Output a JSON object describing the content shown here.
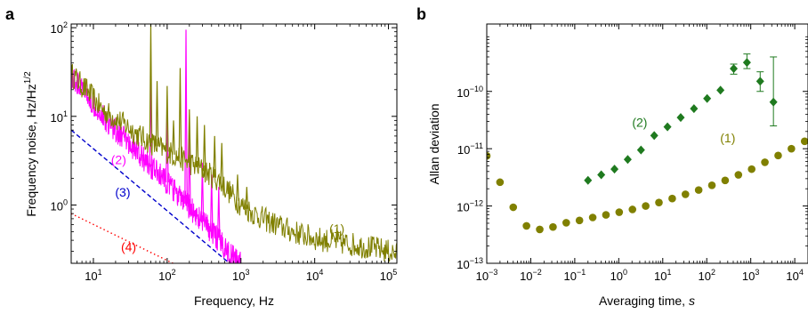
{
  "colors": {
    "olive": "#808000",
    "magenta": "#ff00ff",
    "blue": "#0000cc",
    "red": "#ff0000",
    "green": "#1f7a1f"
  },
  "chart_data": [
    {
      "panel": "a",
      "type": "line",
      "title": "",
      "xlabel": "Frequency, Hz",
      "ylabel": "Frequency noise, Hz/Hz",
      "ylabel_sup": "1/2",
      "xscale": "log",
      "yscale": "log",
      "xlim": [
        5,
        130000
      ],
      "ylim": [
        0.22,
        110
      ],
      "xticks": [
        {
          "v": 10,
          "b": "10",
          "e": "1"
        },
        {
          "v": 100,
          "b": "10",
          "e": "2"
        },
        {
          "v": 1000,
          "b": "10",
          "e": "3"
        },
        {
          "v": 10000,
          "b": "10",
          "e": "4"
        },
        {
          "v": 100000,
          "b": "10",
          "e": "5"
        }
      ],
      "yticks": [
        {
          "v": 1,
          "b": "10",
          "e": "0"
        },
        {
          "v": 10,
          "b": "10",
          "e": "1"
        },
        {
          "v": 100,
          "b": "10",
          "e": "2"
        }
      ],
      "grid": false,
      "series": [
        {
          "label": "(1)",
          "label_at": [
            20000,
            0.48
          ],
          "color": "#808000",
          "style": "noisy",
          "x": [
            5,
            6,
            7,
            8,
            10,
            12,
            15,
            20,
            30,
            40,
            60,
            100,
            150,
            200,
            300,
            500,
            700,
            1000,
            1500,
            2000,
            3000,
            5000,
            10000,
            20000,
            40000,
            70000,
            100000,
            130000
          ],
          "y": [
            30,
            26,
            22,
            20,
            16,
            13,
            11,
            9.5,
            7.5,
            6.2,
            5,
            4,
            3.4,
            3,
            2.5,
            1.9,
            1.4,
            1.0,
            0.8,
            0.7,
            0.6,
            0.5,
            0.42,
            0.38,
            0.35,
            0.32,
            0.3,
            0.28
          ],
          "peaks": [
            {
              "x": 60,
              "y": 110
            },
            {
              "x": 73,
              "y": 25
            },
            {
              "x": 100,
              "y": 22
            },
            {
              "x": 122,
              "y": 9
            },
            {
              "x": 150,
              "y": 35
            },
            {
              "x": 200,
              "y": 12
            },
            {
              "x": 255,
              "y": 10
            },
            {
              "x": 320,
              "y": 8
            },
            {
              "x": 440,
              "y": 6
            },
            {
              "x": 550,
              "y": 5
            },
            {
              "x": 900,
              "y": 2.2
            },
            {
              "x": 1200,
              "y": 1.6
            },
            {
              "x": 20000,
              "y": 0.55
            }
          ]
        },
        {
          "label": "(2)",
          "label_at": [
            22,
            2.9
          ],
          "color": "#ff00ff",
          "style": "noisy",
          "x": [
            5,
            7,
            10,
            15,
            20,
            30,
            50,
            70,
            100,
            150,
            200,
            300,
            400,
            500,
            600,
            700,
            800,
            900,
            1000
          ],
          "y": [
            28,
            20,
            14,
            9,
            7,
            5,
            3.2,
            2.4,
            1.8,
            1.2,
            0.95,
            0.65,
            0.5,
            0.4,
            0.34,
            0.28,
            0.25,
            0.23,
            0.22
          ],
          "peaks": [
            {
              "x": 60,
              "y": 28
            },
            {
              "x": 100,
              "y": 12
            },
            {
              "x": 180,
              "y": 95
            },
            {
              "x": 200,
              "y": 6
            },
            {
              "x": 300,
              "y": 3
            },
            {
              "x": 400,
              "y": 2.2
            },
            {
              "x": 500,
              "y": 1.6
            }
          ]
        },
        {
          "label": "(3)",
          "label_at": [
            25,
            1.25
          ],
          "color": "#0000cc",
          "style": "dashed",
          "x": [
            5,
            700
          ],
          "y": [
            7,
            0.22
          ]
        },
        {
          "label": "(4)",
          "label_at": [
            30,
            0.3
          ],
          "color": "#ff0000",
          "style": "dotted",
          "x": [
            5,
            120
          ],
          "y": [
            0.8,
            0.22
          ]
        }
      ]
    },
    {
      "panel": "b",
      "type": "scatter",
      "title": "",
      "xlabel": "Averaging time, ",
      "xlabel_var": "s",
      "ylabel": "Allan deviation",
      "xscale": "log",
      "yscale": "log",
      "xlim": [
        0.001,
        20000
      ],
      "ylim": [
        1e-13,
        1.5e-09
      ],
      "xticks": [
        {
          "v": 0.001,
          "b": "10",
          "e": "−3"
        },
        {
          "v": 0.01,
          "b": "10",
          "e": "−2"
        },
        {
          "v": 0.1,
          "b": "10",
          "e": "−1"
        },
        {
          "v": 1,
          "b": "10",
          "e": "0"
        },
        {
          "v": 10,
          "b": "10",
          "e": "1"
        },
        {
          "v": 100,
          "b": "10",
          "e": "2"
        },
        {
          "v": 1000,
          "b": "10",
          "e": "3"
        },
        {
          "v": 10000,
          "b": "10",
          "e": "4"
        }
      ],
      "yticks": [
        {
          "v": 1e-13,
          "b": "10",
          "e": "−13"
        },
        {
          "v": 1e-12,
          "b": "10",
          "e": "−12"
        },
        {
          "v": 1e-11,
          "b": "10",
          "e": "−11"
        },
        {
          "v": 1e-10,
          "b": "10",
          "e": "−10"
        }
      ],
      "grid": false,
      "series": [
        {
          "label": "(1)",
          "label_at": [
            300,
            1.3e-11
          ],
          "color": "#808000",
          "marker": "circle",
          "x": [
            0.001,
            0.002,
            0.004,
            0.008,
            0.016,
            0.032,
            0.064,
            0.128,
            0.256,
            0.512,
            1.024,
            2.048,
            4.096,
            8.192,
            16.4,
            32.8,
            65.5,
            131,
            262,
            524,
            1049,
            2097,
            4194,
            8389,
            16777
          ],
          "y": [
            7.5e-12,
            2.6e-12,
            9.5e-13,
            4.5e-13,
            3.9e-13,
            4.3e-13,
            5.1e-13,
            5.6e-13,
            6.3e-13,
            7e-13,
            7.8e-13,
            8.7e-13,
            1e-12,
            1.15e-12,
            1.35e-12,
            1.6e-12,
            1.9e-12,
            2.3e-12,
            2.8e-12,
            3.5e-12,
            4.4e-12,
            5.8e-12,
            7.6e-12,
            1e-11,
            1.35e-11
          ]
        },
        {
          "label": "(2)",
          "label_at": [
            3,
            2.4e-11
          ],
          "color": "#1f7a1f",
          "marker": "diamond",
          "x": [
            0.2,
            0.4,
            0.8,
            1.6,
            3.2,
            6.4,
            12.8,
            25.6,
            51.2,
            102,
            205,
            410,
            819,
            1638,
            3277
          ],
          "y": [
            2.8e-12,
            3.5e-12,
            4.4e-12,
            6.5e-12,
            9.5e-12,
            1.7e-11,
            2.4e-11,
            3.5e-11,
            5e-11,
            7.5e-11,
            1.05e-10,
            2.5e-10,
            3.2e-10,
            1.5e-10,
            6.5e-11
          ],
          "y_err_low": [
            null,
            null,
            null,
            null,
            null,
            null,
            null,
            null,
            null,
            null,
            null,
            2e-10,
            2.5e-10,
            1e-10,
            2.5e-11
          ],
          "y_err_high": [
            null,
            null,
            null,
            null,
            null,
            null,
            null,
            null,
            null,
            null,
            null,
            3e-10,
            4.5e-10,
            2.2e-10,
            4e-10
          ]
        }
      ]
    }
  ]
}
